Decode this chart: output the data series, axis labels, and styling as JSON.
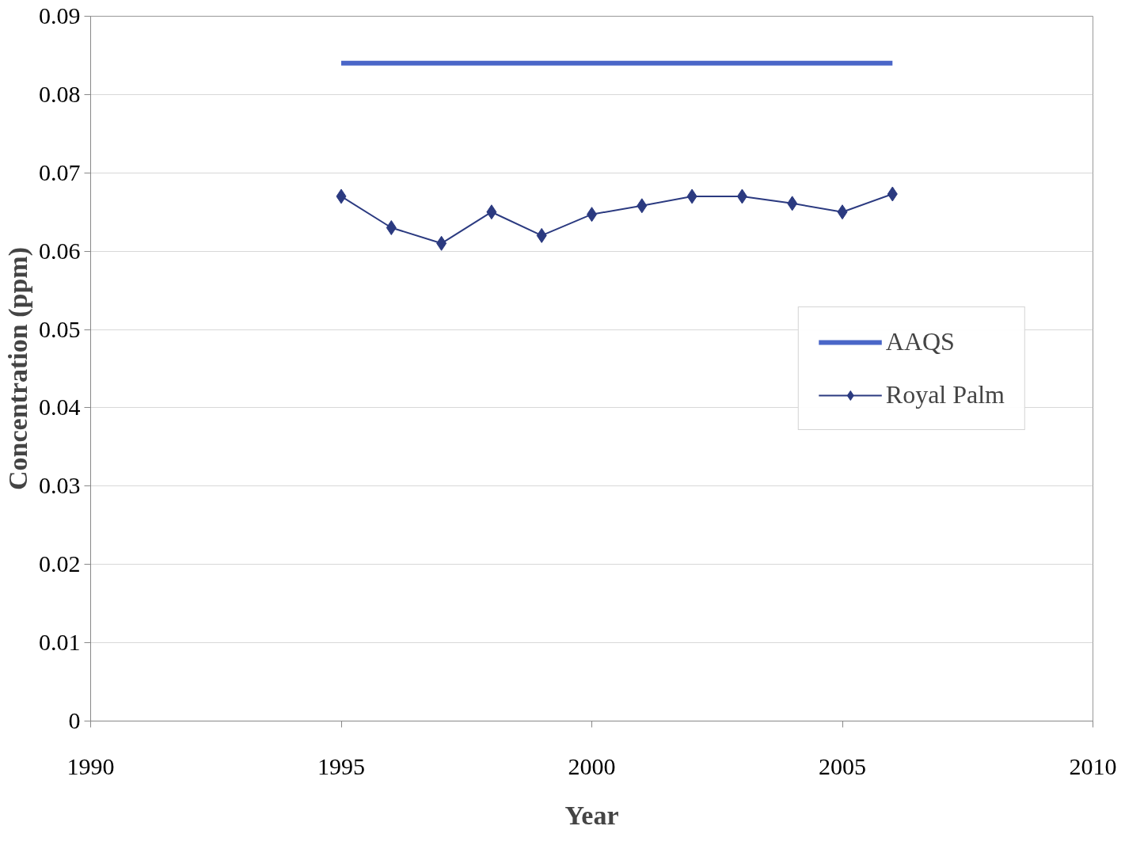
{
  "chart_data": {
    "type": "line",
    "xlabel": "Year",
    "ylabel": "Concentration (ppm)",
    "xlim": [
      1990,
      2010
    ],
    "xticks": [
      1990,
      1995,
      2000,
      2005,
      2010
    ],
    "ylim": [
      0,
      0.09
    ],
    "yticks": [
      0,
      0.01,
      0.02,
      0.03,
      0.04,
      0.05,
      0.06,
      0.07,
      0.08,
      0.09
    ],
    "grid": "y",
    "legend": "right",
    "series": [
      {
        "name": "AAQS",
        "color": "#4a66c8",
        "marker": "none",
        "x": [
          1995,
          2006
        ],
        "values": [
          0.084,
          0.084
        ]
      },
      {
        "name": "Royal Palm",
        "color": "#2b3a80",
        "marker": "diamond",
        "x": [
          1995,
          1996,
          1997,
          1998,
          1999,
          2000,
          2001,
          2002,
          2003,
          2004,
          2005,
          2006
        ],
        "values": [
          0.067,
          0.063,
          0.061,
          0.065,
          0.062,
          0.0647,
          0.0658,
          0.067,
          0.067,
          0.0661,
          0.065,
          0.0673
        ]
      }
    ]
  }
}
